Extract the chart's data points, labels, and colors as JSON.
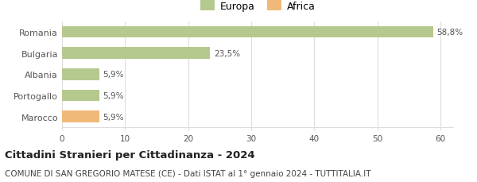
{
  "categories": [
    "Romania",
    "Bulgaria",
    "Albania",
    "Portogallo",
    "Marocco"
  ],
  "values": [
    58.8,
    23.5,
    5.9,
    5.9,
    5.9
  ],
  "labels": [
    "58,8%",
    "23,5%",
    "5,9%",
    "5,9%",
    "5,9%"
  ],
  "bar_colors": [
    "#b5c98e",
    "#b5c98e",
    "#b5c98e",
    "#b5c98e",
    "#f0b97a"
  ],
  "legend_items": [
    {
      "label": "Europa",
      "color": "#b5c98e"
    },
    {
      "label": "Africa",
      "color": "#f0b97a"
    }
  ],
  "xlim": [
    0,
    62
  ],
  "xticks": [
    0,
    10,
    20,
    30,
    40,
    50,
    60
  ],
  "title": "Cittadini Stranieri per Cittadinanza - 2024",
  "subtitle": "COMUNE DI SAN GREGORIO MATESE (CE) - Dati ISTAT al 1° gennaio 2024 - TUTTITALIA.IT",
  "title_fontsize": 9.5,
  "subtitle_fontsize": 7.5,
  "background_color": "#ffffff",
  "grid_color": "#dddddd",
  "label_color": "#555555",
  "bar_edge_color": "none"
}
